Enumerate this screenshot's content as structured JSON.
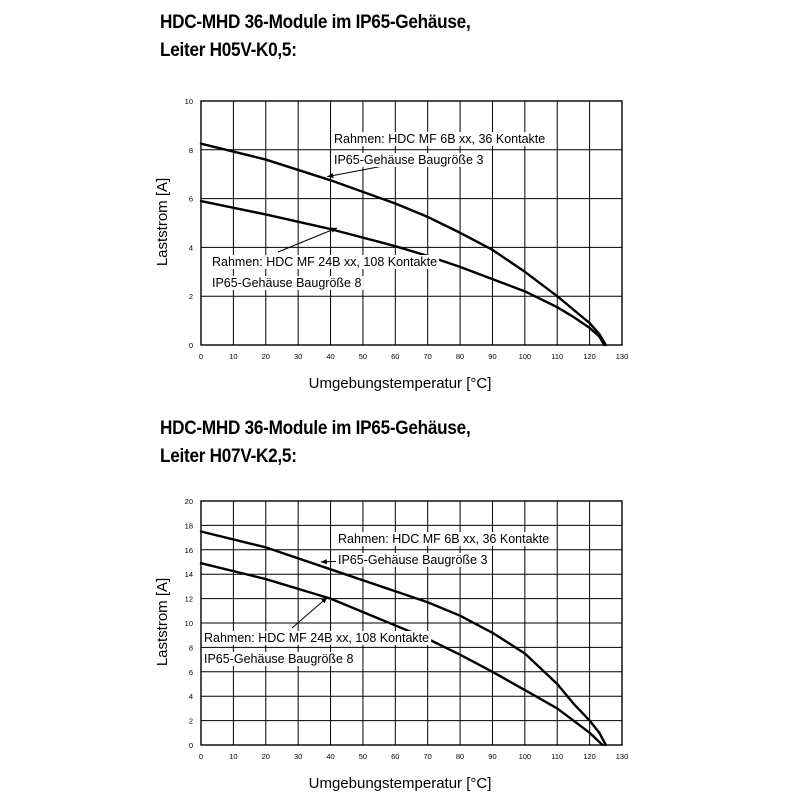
{
  "chart_data": [
    {
      "type": "line",
      "title_line1": "HDC-MHD 36-Module im IP65-Gehäuse,",
      "title_line2": "Leiter H05V-K0,5:",
      "xlabel": "Umgebungstemperatur [°C]",
      "ylabel": "Laststrom [A]",
      "xlim": [
        0,
        130
      ],
      "ylim": [
        0,
        10
      ],
      "x_ticks": [
        0,
        10,
        20,
        30,
        40,
        50,
        60,
        70,
        80,
        90,
        100,
        110,
        120,
        130
      ],
      "y_ticks": [
        0,
        2,
        4,
        6,
        8,
        10
      ],
      "grid": true,
      "series": [
        {
          "x": [
            0,
            20,
            40,
            60,
            70,
            80,
            90,
            100,
            110,
            115,
            120,
            123,
            125
          ],
          "y": [
            8.25,
            7.6,
            6.75,
            5.8,
            5.25,
            4.6,
            3.9,
            3.0,
            2.0,
            1.45,
            0.9,
            0.45,
            0
          ],
          "annotation": [
            "Rahmen: HDC MF 6B xx, 36 Kontakte",
            "IP65-Gehäuse Baugröße 3"
          ],
          "arrow_x": 39,
          "arrow_y": 6.9
        },
        {
          "x": [
            0,
            20,
            40,
            60,
            70,
            80,
            90,
            100,
            110,
            115,
            120,
            123,
            124.5
          ],
          "y": [
            5.9,
            5.35,
            4.75,
            4.05,
            3.65,
            3.2,
            2.7,
            2.2,
            1.55,
            1.15,
            0.7,
            0.35,
            0
          ],
          "annotation": [
            "Rahmen: HDC MF 24B xx, 108 Kontakte",
            "IP65-Gehäuse Baugröße 8"
          ],
          "arrow_x": 42,
          "arrow_y": 4.8
        }
      ]
    },
    {
      "type": "line",
      "title_line1": "HDC-MHD 36-Module im IP65-Gehäuse,",
      "title_line2": "Leiter H07V-K2,5:",
      "xlabel": "Umgebungstemperatur [°C]",
      "ylabel": "Laststrom [A]",
      "xlim": [
        0,
        130
      ],
      "ylim": [
        0,
        20
      ],
      "x_ticks": [
        0,
        10,
        20,
        30,
        40,
        50,
        60,
        70,
        80,
        90,
        100,
        110,
        120,
        130
      ],
      "y_ticks": [
        0,
        2,
        4,
        6,
        8,
        10,
        12,
        14,
        16,
        18,
        20
      ],
      "grid": true,
      "series": [
        {
          "x": [
            0,
            20,
            40,
            60,
            70,
            80,
            90,
            100,
            110,
            115,
            120,
            123,
            125
          ],
          "y": [
            17.5,
            16.2,
            14.4,
            12.6,
            11.7,
            10.6,
            9.2,
            7.5,
            5.0,
            3.4,
            2.0,
            1.0,
            0
          ],
          "annotation": [
            "Rahmen: HDC MF 6B xx, 36 Kontakte",
            "IP65-Gehäuse Baugröße 3"
          ],
          "arrow_x": 37,
          "arrow_y": 15.0
        },
        {
          "x": [
            0,
            20,
            40,
            60,
            70,
            80,
            90,
            100,
            110,
            115,
            120,
            122,
            124
          ],
          "y": [
            14.9,
            13.6,
            12.0,
            9.8,
            8.7,
            7.4,
            6.0,
            4.5,
            3.0,
            2.0,
            1.0,
            0.5,
            0
          ],
          "annotation": [
            "Rahmen: HDC MF 24B xx, 108 Kontakte",
            "IP65-Gehäuse Baugröße 8"
          ],
          "arrow_x": 39,
          "arrow_y": 12.1
        }
      ]
    }
  ]
}
